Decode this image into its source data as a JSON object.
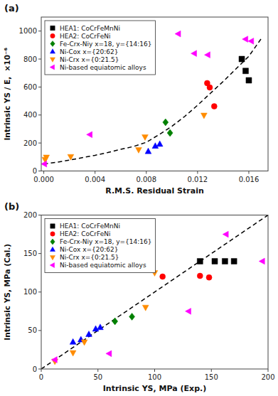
{
  "chart_data": [
    {
      "type": "scatter",
      "title": "(a)",
      "x_label": "R.M.S. Residual Strain",
      "y_label": "Intrinsic YS / E,  ×10⁻⁶",
      "xlim": [
        -0.0002,
        0.0175
      ],
      "ylim": [
        0,
        1100
      ],
      "xticks": [
        {
          "value": 0,
          "label": "0.000"
        },
        0.004,
        0.008,
        0.012,
        0.016
      ],
      "yticks": [
        0,
        200,
        400,
        600,
        800,
        1000
      ],
      "legend": "upper left",
      "series": [
        {
          "type": "line",
          "line_style": "dashed",
          "color": "#000000",
          "x": [
            0.0,
            0.001,
            0.002,
            0.003,
            0.004,
            0.005,
            0.006,
            0.007,
            0.008,
            0.009,
            0.01,
            0.011,
            0.012,
            0.013,
            0.014,
            0.015,
            0.016,
            0.017
          ],
          "values": [
            50,
            62,
            78,
            95,
            112,
            132,
            155,
            175,
            205,
            260,
            320,
            390,
            470,
            555,
            640,
            730,
            820,
            950
          ]
        },
        {
          "name": "HEA1: CoCrFeMnNi",
          "color": "#000000",
          "marker": "square",
          "x": [
            0.01545,
            0.01575,
            0.016
          ],
          "values": [
            800,
            715,
            648
          ]
        },
        {
          "name": "HEA2: CoCrFeNi",
          "color": "#ff0000",
          "marker": "circle",
          "x": [
            0.01275,
            0.01295,
            0.0133
          ],
          "values": [
            628,
            597,
            462
          ]
        },
        {
          "name": "Fe-Crx-Niy x=18, y={14:16}",
          "color": "#008000",
          "marker": "diamond",
          "x": [
            0.0095,
            0.00985
          ],
          "values": [
            348,
            272
          ]
        },
        {
          "name": "Ni-Cox x={20:62}",
          "color": "#0000ff",
          "marker": "triangle-up",
          "x": [
            0.00815,
            0.0087,
            0.00905
          ],
          "values": [
            140,
            178,
            192
          ]
        },
        {
          "name": "Ni-Crx x={0:21.5}",
          "color": "#ff8c00",
          "marker": "triangle-down",
          "x": [
            0.0001,
            0.0002,
            0.0021,
            0.0074,
            0.0079,
            0.0125
          ],
          "values": [
            82,
            98,
            102,
            152,
            243,
            398
          ]
        },
        {
          "name": "Ni-based equiatomic alloys",
          "color": "#ff00ff",
          "marker": "triangle-left",
          "x": [
            5e-05,
            0.0036,
            0.0105,
            0.01175,
            0.0128,
            0.01575,
            0.0162
          ],
          "values": [
            50,
            260,
            980,
            840,
            830,
            942,
            928
          ]
        }
      ]
    },
    {
      "type": "scatter",
      "title": "(b)",
      "x_label": "Intrinsic YS, MPa (Exp.)",
      "y_label": "Intrinsic YS, MPa (Cal.)",
      "xlim": [
        0,
        200
      ],
      "ylim": [
        0,
        200
      ],
      "xticks": [
        0,
        50,
        100,
        150,
        200
      ],
      "yticks": [
        0,
        50,
        100,
        150,
        200
      ],
      "legend": "upper left",
      "series": [
        {
          "type": "line",
          "line_style": "dashed",
          "color": "#000000",
          "x": [
            0,
            200
          ],
          "values": [
            0,
            200
          ]
        },
        {
          "name": "HEA1: CoCrFeMnNi",
          "color": "#000000",
          "marker": "square",
          "x": [
            140,
            153,
            162,
            170
          ],
          "values": [
            140,
            140,
            140,
            140
          ]
        },
        {
          "name": "HEA2: CoCrFeNi",
          "color": "#ff0000",
          "marker": "circle",
          "x": [
            107,
            140,
            148
          ],
          "values": [
            120,
            121,
            119
          ]
        },
        {
          "name": "Fe-Crx-Niy x=18, y={14:16}",
          "color": "#008000",
          "marker": "diamond",
          "x": [
            65,
            80
          ],
          "values": [
            62,
            68
          ]
        },
        {
          "name": "Ni-Cox x={20:62}",
          "color": "#0000ff",
          "marker": "triangle-up",
          "x": [
            28,
            35,
            42,
            48,
            52
          ],
          "values": [
            35,
            38,
            45,
            52,
            54
          ]
        },
        {
          "name": "Ni-Crx x={0:21.5}",
          "color": "#ff8c00",
          "marker": "triangle-down",
          "x": [
            12,
            28,
            38,
            92,
            100
          ],
          "values": [
            10,
            21,
            35,
            80,
            125
          ]
        },
        {
          "name": "Ni-based equiatomic alloys",
          "color": "#ff00ff",
          "marker": "triangle-left",
          "x": [
            12,
            60,
            130,
            163,
            195
          ],
          "values": [
            12,
            20,
            75,
            175,
            140
          ]
        }
      ]
    }
  ]
}
